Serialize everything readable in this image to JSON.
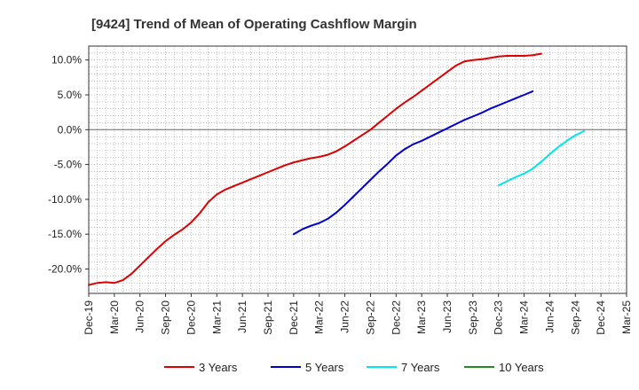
{
  "chart_data": {
    "type": "line",
    "title": "[9424]  Trend of Mean of Operating Cashflow Margin",
    "xlabel": "",
    "ylabel": "",
    "ylim": [
      -23.5,
      12
    ],
    "x_tick_labels": [
      "Dec-19",
      "Mar-20",
      "Jun-20",
      "Sep-20",
      "Dec-20",
      "Mar-21",
      "Jun-21",
      "Sep-21",
      "Dec-21",
      "Mar-22",
      "Jun-22",
      "Sep-22",
      "Dec-22",
      "Mar-23",
      "Jun-23",
      "Sep-23",
      "Dec-23",
      "Mar-24",
      "Jun-24",
      "Sep-24",
      "Dec-24",
      "Mar-25"
    ],
    "y_ticks": [
      10,
      5,
      0,
      -5,
      -10,
      -15,
      -20
    ],
    "y_tick_labels": [
      "10.0%",
      "5.0%",
      "0.0%",
      "-5.0%",
      "-10.0%",
      "-15.0%",
      "-20.0%"
    ],
    "grid": true,
    "legend_position": "bottom",
    "series": [
      {
        "name": "3 Years",
        "color": "#dd0000",
        "start_index": 0,
        "values": [
          -22.3,
          -22.0,
          -21.9,
          -22.0,
          -21.6,
          -20.7,
          -19.5,
          -18.3,
          -17.1,
          -16.0,
          -15.1,
          -14.3,
          -13.3,
          -12.0,
          -10.4,
          -9.3,
          -8.6,
          -8.1,
          -7.6,
          -7.1,
          -6.6,
          -6.1,
          -5.6,
          -5.1,
          -4.7,
          -4.4,
          -4.1,
          -3.9,
          -3.6,
          -3.1,
          -2.4,
          -1.6,
          -0.8,
          0.0,
          1.0,
          2.0,
          3.0,
          3.9,
          4.7,
          5.6,
          6.5,
          7.4,
          8.3,
          9.2,
          9.8,
          10.0,
          10.1,
          10.3,
          10.5,
          10.6,
          10.6,
          10.6,
          10.7,
          10.9
        ]
      },
      {
        "name": "5 Years",
        "color": "#0000cc",
        "start_index": 24,
        "values": [
          -15.0,
          -14.3,
          -13.8,
          -13.4,
          -12.8,
          -11.9,
          -10.8,
          -9.6,
          -8.4,
          -7.2,
          -6.0,
          -4.9,
          -3.7,
          -2.8,
          -2.1,
          -1.6,
          -1.0,
          -0.4,
          0.2,
          0.8,
          1.4,
          1.9,
          2.4,
          3.0,
          3.5,
          4.0,
          4.5,
          5.0,
          5.5
        ]
      },
      {
        "name": "7 Years",
        "color": "#00e5ee",
        "start_index": 48,
        "values": [
          -8.0,
          -7.4,
          -6.8,
          -6.3,
          -5.6,
          -4.6,
          -3.5,
          -2.5,
          -1.6,
          -0.8,
          -0.2
        ]
      },
      {
        "name": "10 Years",
        "color": "#228b22",
        "start_index": 0,
        "values": []
      }
    ]
  }
}
